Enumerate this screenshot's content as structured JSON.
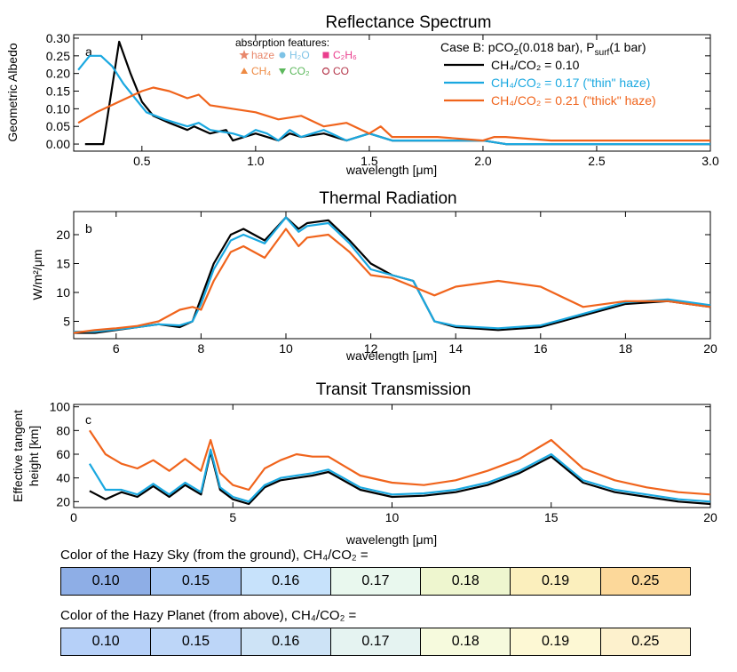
{
  "panel_a": {
    "title": "Reflectance Spectrum",
    "letter": "a",
    "xlabel": "wavelength [μm]",
    "ylabel": "Geometric Albedo",
    "case": "Case B: pCO₂(0.018 bar), Pₛᵤᵣᶠ(1 bar)",
    "case_main": "Case B: pCO",
    "case_sub": "2",
    "case_mid": "(0.018 bar), P",
    "case_sub2": "surf",
    "case_end": "(1 bar)",
    "absorption_title": "absorption features:",
    "absorbers": [
      {
        "label": "haze",
        "symbol": "star",
        "color": "#e8876b"
      },
      {
        "label": "H₂O",
        "symbol": "circle",
        "color": "#7ec3e6"
      },
      {
        "label": "C₂H₆",
        "symbol": "square",
        "color": "#ea3e8d"
      },
      {
        "label": "CH₄",
        "symbol": "triangle-up",
        "color": "#ee8a43"
      },
      {
        "label": "CO₂",
        "symbol": "triangle-down",
        "color": "#5cb85c"
      },
      {
        "label": "CO",
        "symbol": "circle-open",
        "color": "#b5384c"
      }
    ]
  },
  "legend": [
    {
      "label": "CH₄/CO₂ = 0.10",
      "color": "#000000"
    },
    {
      "label": "CH₄/CO₂ = 0.17 (\"thin\" haze)",
      "color": "#1aa8e0"
    },
    {
      "label": "CH₄/CO₂ = 0.21 (\"thick\" haze)",
      "color": "#f0641c"
    }
  ],
  "panel_b": {
    "title": "Thermal Radiation",
    "letter": "b",
    "xlabel": "wavelength [μm]",
    "ylabel": "W/m²/μm"
  },
  "panel_c": {
    "title": "Transit Transmission",
    "letter": "c",
    "xlabel": "wavelength [μm]",
    "ylabel_1": "Effective tangent",
    "ylabel_2": "height [km]"
  },
  "sky_strip": {
    "label": "Color of the Hazy Sky (from the ground), CH₄/CO₂ =",
    "cells": [
      {
        "value": "0.10",
        "color": "#8eaee6"
      },
      {
        "value": "0.15",
        "color": "#a4c4f2"
      },
      {
        "value": "0.16",
        "color": "#c7e2fb"
      },
      {
        "value": "0.17",
        "color": "#e9f8ee"
      },
      {
        "value": "0.18",
        "color": "#eef6cf"
      },
      {
        "value": "0.19",
        "color": "#fbefbd"
      },
      {
        "value": "0.25",
        "color": "#fcd89a"
      }
    ]
  },
  "planet_strip": {
    "label": "Color of the Hazy Planet (from above), CH₄/CO₂ =",
    "cells": [
      {
        "value": "0.10",
        "color": "#b6d0f8"
      },
      {
        "value": "0.15",
        "color": "#bdd6f8"
      },
      {
        "value": "0.16",
        "color": "#cde3f6"
      },
      {
        "value": "0.17",
        "color": "#e5f3f1"
      },
      {
        "value": "0.18",
        "color": "#f6fadd"
      },
      {
        "value": "0.19",
        "color": "#fdf8d4"
      },
      {
        "value": "0.25",
        "color": "#fdf1cd"
      }
    ]
  },
  "chart_data": [
    {
      "type": "line",
      "title": "Reflectance Spectrum",
      "xlabel": "wavelength [μm]",
      "ylabel": "Geometric Albedo",
      "xlim": [
        0.2,
        3.0
      ],
      "ylim": [
        -0.02,
        0.31
      ],
      "xticks": [
        "0.5",
        "1.0",
        "1.5",
        "2.0",
        "2.5",
        "3.0"
      ],
      "yticks": [
        "0.00",
        "0.05",
        "0.10",
        "0.15",
        "0.20",
        "0.25",
        "0.30"
      ],
      "series": [
        {
          "name": "CH₄/CO₂ = 0.10",
          "color": "#000000",
          "x": [
            0.25,
            0.33,
            0.4,
            0.45,
            0.5,
            0.55,
            0.62,
            0.7,
            0.73,
            0.8,
            0.87,
            0.9,
            0.95,
            1.0,
            1.05,
            1.1,
            1.15,
            1.2,
            1.3,
            1.4,
            1.5,
            1.6,
            1.8,
            2.0,
            2.1,
            2.5,
            3.0
          ],
          "y": [
            0.0,
            0.0,
            0.29,
            0.2,
            0.12,
            0.08,
            0.06,
            0.04,
            0.05,
            0.03,
            0.04,
            0.01,
            0.02,
            0.03,
            0.02,
            0.01,
            0.03,
            0.02,
            0.03,
            0.01,
            0.03,
            0.01,
            0.01,
            0.01,
            0.0,
            0.0,
            0.0
          ]
        },
        {
          "name": "CH₄/CO₂ = 0.17 (\"thin\" haze)",
          "color": "#1aa8e0",
          "x": [
            0.22,
            0.27,
            0.32,
            0.37,
            0.42,
            0.47,
            0.52,
            0.6,
            0.7,
            0.75,
            0.8,
            0.9,
            0.95,
            1.0,
            1.05,
            1.1,
            1.15,
            1.2,
            1.3,
            1.4,
            1.5,
            1.6,
            1.8,
            2.0,
            2.1,
            2.5,
            3.0
          ],
          "y": [
            0.21,
            0.25,
            0.25,
            0.22,
            0.17,
            0.13,
            0.09,
            0.07,
            0.05,
            0.06,
            0.04,
            0.03,
            0.02,
            0.04,
            0.03,
            0.01,
            0.04,
            0.02,
            0.04,
            0.01,
            0.03,
            0.01,
            0.01,
            0.01,
            0.0,
            0.0,
            0.0
          ]
        },
        {
          "name": "CH₄/CO₂ = 0.21 (\"thick\" haze)",
          "color": "#f0641c",
          "x": [
            0.22,
            0.3,
            0.4,
            0.5,
            0.55,
            0.62,
            0.7,
            0.75,
            0.8,
            0.9,
            1.0,
            1.1,
            1.2,
            1.3,
            1.4,
            1.5,
            1.55,
            1.6,
            1.7,
            1.8,
            2.0,
            2.05,
            2.1,
            2.3,
            2.5,
            2.8,
            3.0
          ],
          "y": [
            0.06,
            0.09,
            0.12,
            0.15,
            0.16,
            0.15,
            0.13,
            0.14,
            0.11,
            0.1,
            0.09,
            0.07,
            0.08,
            0.05,
            0.06,
            0.03,
            0.05,
            0.02,
            0.02,
            0.02,
            0.01,
            0.02,
            0.02,
            0.01,
            0.01,
            0.01,
            0.01
          ]
        }
      ]
    },
    {
      "type": "line",
      "title": "Thermal Radiation",
      "xlabel": "wavelength [μm]",
      "ylabel": "W/m²/μm",
      "xlim": [
        5,
        20
      ],
      "ylim": [
        2,
        24
      ],
      "xticks": [
        "6",
        "8",
        "10",
        "12",
        "14",
        "16",
        "18",
        "20"
      ],
      "yticks": [
        "5",
        "10",
        "15",
        "20"
      ],
      "series": [
        {
          "name": "CH₄/CO₂ = 0.10",
          "color": "#000000",
          "x": [
            5,
            5.5,
            6,
            6.5,
            7,
            7.5,
            7.8,
            8,
            8.3,
            8.7,
            9,
            9.5,
            10,
            10.3,
            10.5,
            11,
            11.5,
            12,
            12.5,
            13,
            13.5,
            14,
            15,
            16,
            17,
            18,
            19,
            20
          ],
          "y": [
            3,
            3,
            3.5,
            4,
            4.5,
            4,
            5,
            9,
            15,
            20,
            21,
            19,
            23,
            21,
            22,
            22.5,
            19,
            15,
            13,
            12,
            5,
            4,
            3.5,
            4,
            6,
            8,
            8.5,
            7.5
          ]
        },
        {
          "name": "CH₄/CO₂ = 0.17 (\"thin\" haze)",
          "color": "#1aa8e0",
          "x": [
            5,
            5.5,
            6,
            6.5,
            7,
            7.5,
            7.8,
            8,
            8.3,
            8.7,
            9,
            9.5,
            10,
            10.3,
            10.5,
            11,
            11.5,
            12,
            12.5,
            13,
            13.5,
            14,
            15,
            16,
            17,
            18,
            19,
            20
          ],
          "y": [
            3.2,
            3.2,
            3.6,
            4,
            4.5,
            4.3,
            5,
            8,
            14,
            19,
            20,
            18.5,
            23,
            20.5,
            21.5,
            22,
            18.5,
            14,
            13,
            12,
            5,
            4.2,
            3.8,
            4.3,
            6.3,
            8.3,
            8.8,
            7.8
          ]
        },
        {
          "name": "CH₄/CO₂ = 0.21 (\"thick\" haze)",
          "color": "#f0641c",
          "x": [
            5,
            5.5,
            6,
            6.5,
            7,
            7.5,
            7.8,
            8,
            8.3,
            8.7,
            9,
            9.5,
            10,
            10.3,
            10.5,
            11,
            11.5,
            12,
            12.5,
            13,
            13.5,
            14,
            15,
            16,
            17,
            18,
            19,
            20
          ],
          "y": [
            3,
            3.5,
            3.8,
            4.2,
            5,
            7,
            7.5,
            7,
            12,
            17,
            18,
            16,
            21,
            18,
            19.5,
            20,
            17,
            13,
            12.5,
            11,
            9.5,
            11,
            12,
            11,
            7.5,
            8.5,
            8.5,
            7.5
          ]
        }
      ]
    },
    {
      "type": "line",
      "title": "Transit Transmission",
      "xlabel": "wavelength [μm]",
      "ylabel": "Effective tangent height [km]",
      "xlim": [
        0,
        20
      ],
      "ylim": [
        15,
        102
      ],
      "xticks": [
        "0",
        "5",
        "10",
        "15",
        "20"
      ],
      "yticks": [
        "20",
        "40",
        "60",
        "80",
        "100"
      ],
      "series": [
        {
          "name": "CH₄/CO₂ = 0.10",
          "color": "#000000",
          "x": [
            0.5,
            1,
            1.5,
            2,
            2.5,
            3,
            3.5,
            4,
            4.3,
            4.6,
            5,
            5.5,
            6,
            6.5,
            7,
            7.5,
            8,
            9,
            10,
            11,
            12,
            13,
            14,
            15,
            16,
            17,
            18,
            19,
            20
          ],
          "y": [
            29,
            22,
            28,
            24,
            33,
            24,
            34,
            26,
            62,
            30,
            22,
            18,
            32,
            38,
            40,
            42,
            45,
            30,
            24,
            25,
            28,
            34,
            44,
            58,
            36,
            28,
            24,
            20,
            18
          ]
        },
        {
          "name": "CH₄/CO₂ = 0.17 (\"thin\" haze)",
          "color": "#1aa8e0",
          "x": [
            0.5,
            1,
            1.5,
            2,
            2.5,
            3,
            3.5,
            4,
            4.3,
            4.6,
            5,
            5.5,
            6,
            6.5,
            7,
            7.5,
            8,
            9,
            10,
            11,
            12,
            13,
            14,
            15,
            16,
            17,
            18,
            19,
            20
          ],
          "y": [
            52,
            30,
            30,
            26,
            35,
            26,
            36,
            28,
            64,
            32,
            24,
            20,
            34,
            40,
            42,
            44,
            47,
            32,
            26,
            27,
            30,
            36,
            46,
            60,
            38,
            30,
            26,
            22,
            20
          ]
        },
        {
          "name": "CH₄/CO₂ = 0.21 (\"thick\" haze)",
          "color": "#f0641c",
          "x": [
            0.5,
            1,
            1.5,
            2,
            2.5,
            3,
            3.5,
            4,
            4.3,
            4.6,
            5,
            5.5,
            6,
            6.5,
            7,
            7.5,
            8,
            9,
            10,
            11,
            12,
            13,
            14,
            15,
            16,
            17,
            18,
            19,
            20
          ],
          "y": [
            80,
            60,
            52,
            48,
            55,
            46,
            56,
            46,
            72,
            44,
            34,
            30,
            48,
            55,
            60,
            58,
            58,
            42,
            36,
            34,
            38,
            46,
            56,
            72,
            48,
            38,
            32,
            28,
            26
          ]
        }
      ]
    }
  ]
}
